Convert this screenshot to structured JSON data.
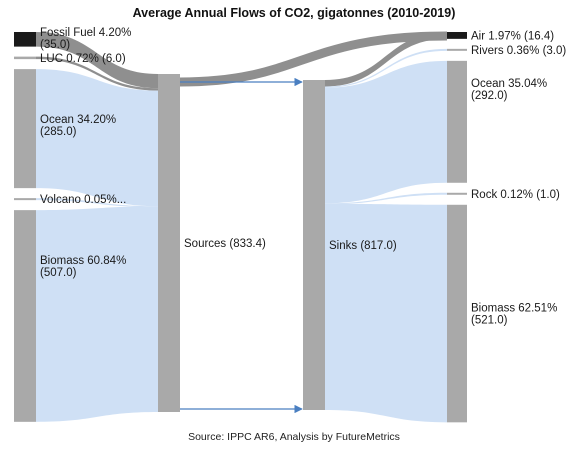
{
  "title": "Average Annual Flows of CO2, gigatonnes (2010-2019)",
  "source_note": "Source: IPPC AR6, Analysis by FutureMetrics",
  "colors": {
    "node": "#a9a9a9",
    "node_dark": "#1a1a1a",
    "link": "#cfe0f5",
    "link_dark": "#8f8f8f",
    "arrow": "#4a7fc1"
  },
  "chart_data": {
    "type": "sankey",
    "units": "gigatonnes CO2 per year",
    "sources": [
      {
        "name": "Fossil Fuel",
        "line1": "Fossil Fuel 4.20%",
        "line2": "(35.0)",
        "value": 35.0,
        "pct": 4.2
      },
      {
        "name": "LUC",
        "line1": "LUC 0.72% (6.0)",
        "line2": "",
        "value": 6.0,
        "pct": 0.72
      },
      {
        "name": "Ocean",
        "line1": "Ocean 34.20%",
        "line2": "(285.0)",
        "value": 285.0,
        "pct": 34.2
      },
      {
        "name": "Volcano",
        "line1": "Volcano 0.05%...",
        "line2": "",
        "value": 0.4,
        "pct": 0.05
      },
      {
        "name": "Biomass",
        "line1": "Biomass 60.84%",
        "line2": "(507.0)",
        "value": 507.0,
        "pct": 60.84
      }
    ],
    "hubs": [
      {
        "name": "Sources",
        "label": "Sources (833.4)",
        "value": 833.4
      },
      {
        "name": "Sinks",
        "label": "Sinks (817.0)",
        "value": 817.0
      }
    ],
    "sinks": [
      {
        "name": "Air",
        "line1": "Air 1.97% (16.4)",
        "line2": "",
        "value": 16.4,
        "pct": 1.97
      },
      {
        "name": "Rivers",
        "line1": "Rivers 0.36% (3.0)",
        "line2": "",
        "value": 3.0,
        "pct": 0.36
      },
      {
        "name": "Ocean",
        "line1": "Ocean 35.04%",
        "line2": "(292.0)",
        "value": 292.0,
        "pct": 35.04
      },
      {
        "name": "Rock",
        "line1": "Rock 0.12% (1.0)",
        "line2": "",
        "value": 1.0,
        "pct": 0.12
      },
      {
        "name": "Biomass",
        "line1": "Biomass 62.51%",
        "line2": "(521.0)",
        "value": 521.0,
        "pct": 62.51
      }
    ]
  }
}
